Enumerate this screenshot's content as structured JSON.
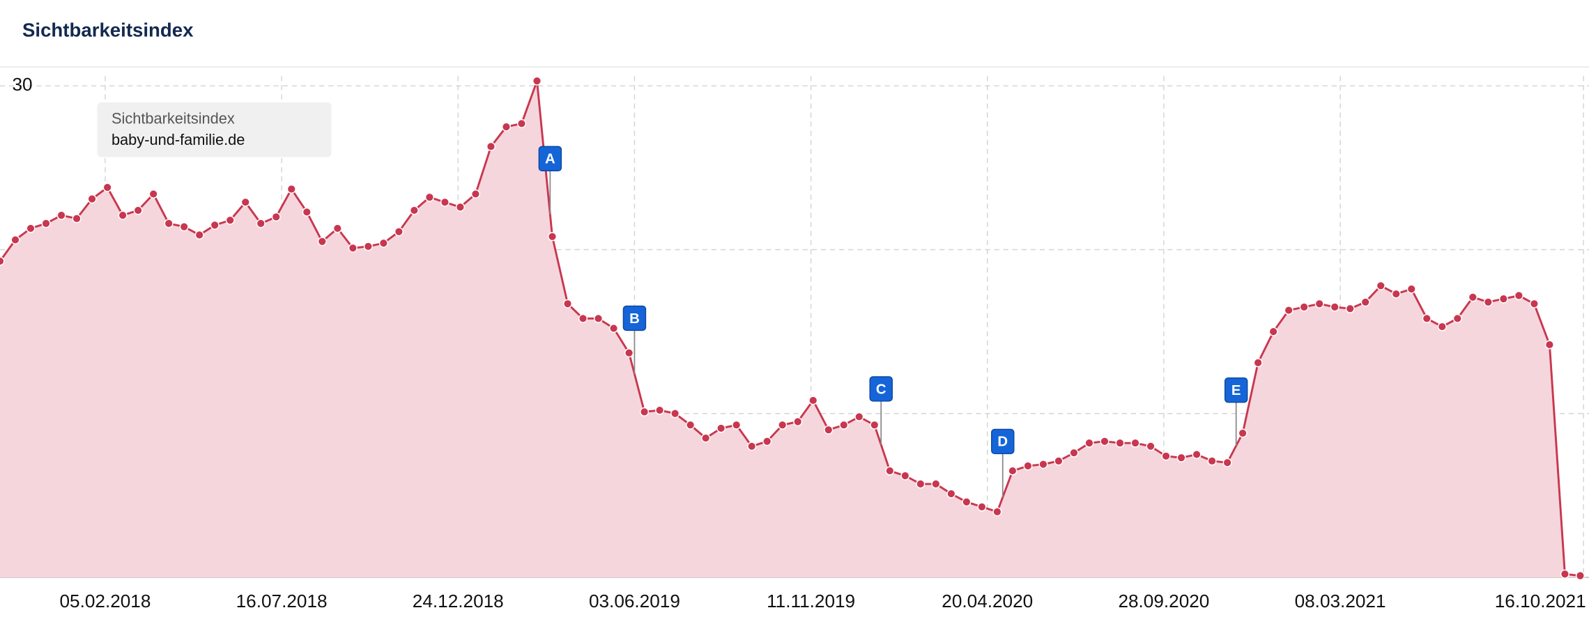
{
  "chart_data": {
    "type": "area",
    "title": "Sichtbarkeitsindex",
    "legend_title": "Sichtbarkeitsindex",
    "x": [
      "2017-11-01",
      "2017-11-15",
      "2017-11-29",
      "2017-12-13",
      "2017-12-27",
      "2018-01-10",
      "2018-01-24",
      "2018-02-07",
      "2018-02-21",
      "2018-03-07",
      "2018-03-21",
      "2018-04-04",
      "2018-04-18",
      "2018-05-02",
      "2018-05-16",
      "2018-05-30",
      "2018-06-13",
      "2018-06-27",
      "2018-07-11",
      "2018-07-25",
      "2018-08-08",
      "2018-08-22",
      "2018-09-05",
      "2018-09-19",
      "2018-10-03",
      "2018-10-17",
      "2018-10-31",
      "2018-11-14",
      "2018-11-28",
      "2018-12-12",
      "2018-12-26",
      "2019-01-09",
      "2019-01-23",
      "2019-02-06",
      "2019-02-20",
      "2019-03-06",
      "2019-03-20",
      "2019-04-03",
      "2019-04-17",
      "2019-05-01",
      "2019-05-15",
      "2019-05-29",
      "2019-06-12",
      "2019-06-26",
      "2019-07-10",
      "2019-07-24",
      "2019-08-07",
      "2019-08-21",
      "2019-09-04",
      "2019-09-18",
      "2019-10-02",
      "2019-10-16",
      "2019-10-30",
      "2019-11-13",
      "2019-11-27",
      "2019-12-11",
      "2019-12-25",
      "2020-01-08",
      "2020-01-22",
      "2020-02-05",
      "2020-02-19",
      "2020-03-04",
      "2020-03-18",
      "2020-04-01",
      "2020-04-15",
      "2020-04-29",
      "2020-05-13",
      "2020-05-27",
      "2020-06-10",
      "2020-06-24",
      "2020-07-08",
      "2020-07-22",
      "2020-08-05",
      "2020-08-19",
      "2020-09-02",
      "2020-09-16",
      "2020-09-30",
      "2020-10-14",
      "2020-10-28",
      "2020-11-11",
      "2020-11-25",
      "2020-12-09",
      "2020-12-23",
      "2021-01-06",
      "2021-01-20",
      "2021-02-03",
      "2021-02-17",
      "2021-03-03",
      "2021-03-17",
      "2021-03-31",
      "2021-04-14",
      "2021-04-28",
      "2021-05-12",
      "2021-05-26",
      "2021-06-09",
      "2021-06-23",
      "2021-07-07",
      "2021-07-21",
      "2021-08-04",
      "2021-08-18",
      "2021-09-01",
      "2021-09-15",
      "2021-09-29",
      "2021-10-13"
    ],
    "series": [
      {
        "name": "baby-und-familie.de",
        "color": "#c8374f",
        "fill": "#f6d6dd",
        "values": [
          19.3,
          20.6,
          21.3,
          21.6,
          22.1,
          21.9,
          23.1,
          23.8,
          22.1,
          22.4,
          23.4,
          21.6,
          21.4,
          20.9,
          21.5,
          21.8,
          22.9,
          21.6,
          22.0,
          23.7,
          22.3,
          20.5,
          21.3,
          20.1,
          20.2,
          20.4,
          21.1,
          22.4,
          23.2,
          22.9,
          22.6,
          23.4,
          26.3,
          27.5,
          27.7,
          30.3,
          20.8,
          16.7,
          15.8,
          15.8,
          15.2,
          13.7,
          10.1,
          10.2,
          10.0,
          9.3,
          8.5,
          9.1,
          9.3,
          8.0,
          8.3,
          9.3,
          9.5,
          10.8,
          9.0,
          9.3,
          9.8,
          9.3,
          6.5,
          6.2,
          5.7,
          5.7,
          5.1,
          4.6,
          4.3,
          4.0,
          6.5,
          6.8,
          6.9,
          7.1,
          7.6,
          8.2,
          8.3,
          8.2,
          8.2,
          8.0,
          7.4,
          7.3,
          7.5,
          7.1,
          7.0,
          8.8,
          13.1,
          15.0,
          16.3,
          16.5,
          16.7,
          16.5,
          16.4,
          16.8,
          17.8,
          17.3,
          17.6,
          15.8,
          15.3,
          15.8,
          17.1,
          16.8,
          17.0,
          17.2,
          16.7,
          14.2,
          0.2,
          0.1
        ]
      }
    ],
    "xlim": [
      "2017-11-01",
      "2021-10-21"
    ],
    "xticks": [
      {
        "value": "2018-02-05",
        "label": "05.02.2018"
      },
      {
        "value": "2018-07-16",
        "label": "16.07.2018"
      },
      {
        "value": "2018-12-24",
        "label": "24.12.2018"
      },
      {
        "value": "2019-06-03",
        "label": "03.06.2019"
      },
      {
        "value": "2019-11-11",
        "label": "11.11.2019"
      },
      {
        "value": "2020-04-20",
        "label": "20.04.2020"
      },
      {
        "value": "2020-09-28",
        "label": "28.09.2020"
      },
      {
        "value": "2021-03-08",
        "label": "08.03.2021"
      },
      {
        "value": "2021-10-16",
        "label": "16.10.2021"
      }
    ],
    "ylim": [
      0,
      30.6
    ],
    "yticks": [
      10,
      20,
      30
    ],
    "grid": true,
    "annotations": [
      {
        "label": "A",
        "x": "2019-03-18"
      },
      {
        "label": "B",
        "x": "2019-06-03"
      },
      {
        "label": "C",
        "x": "2020-01-14"
      },
      {
        "label": "D",
        "x": "2020-05-04"
      },
      {
        "label": "E",
        "x": "2020-12-03"
      }
    ],
    "annotation_color": "#1565d8"
  }
}
